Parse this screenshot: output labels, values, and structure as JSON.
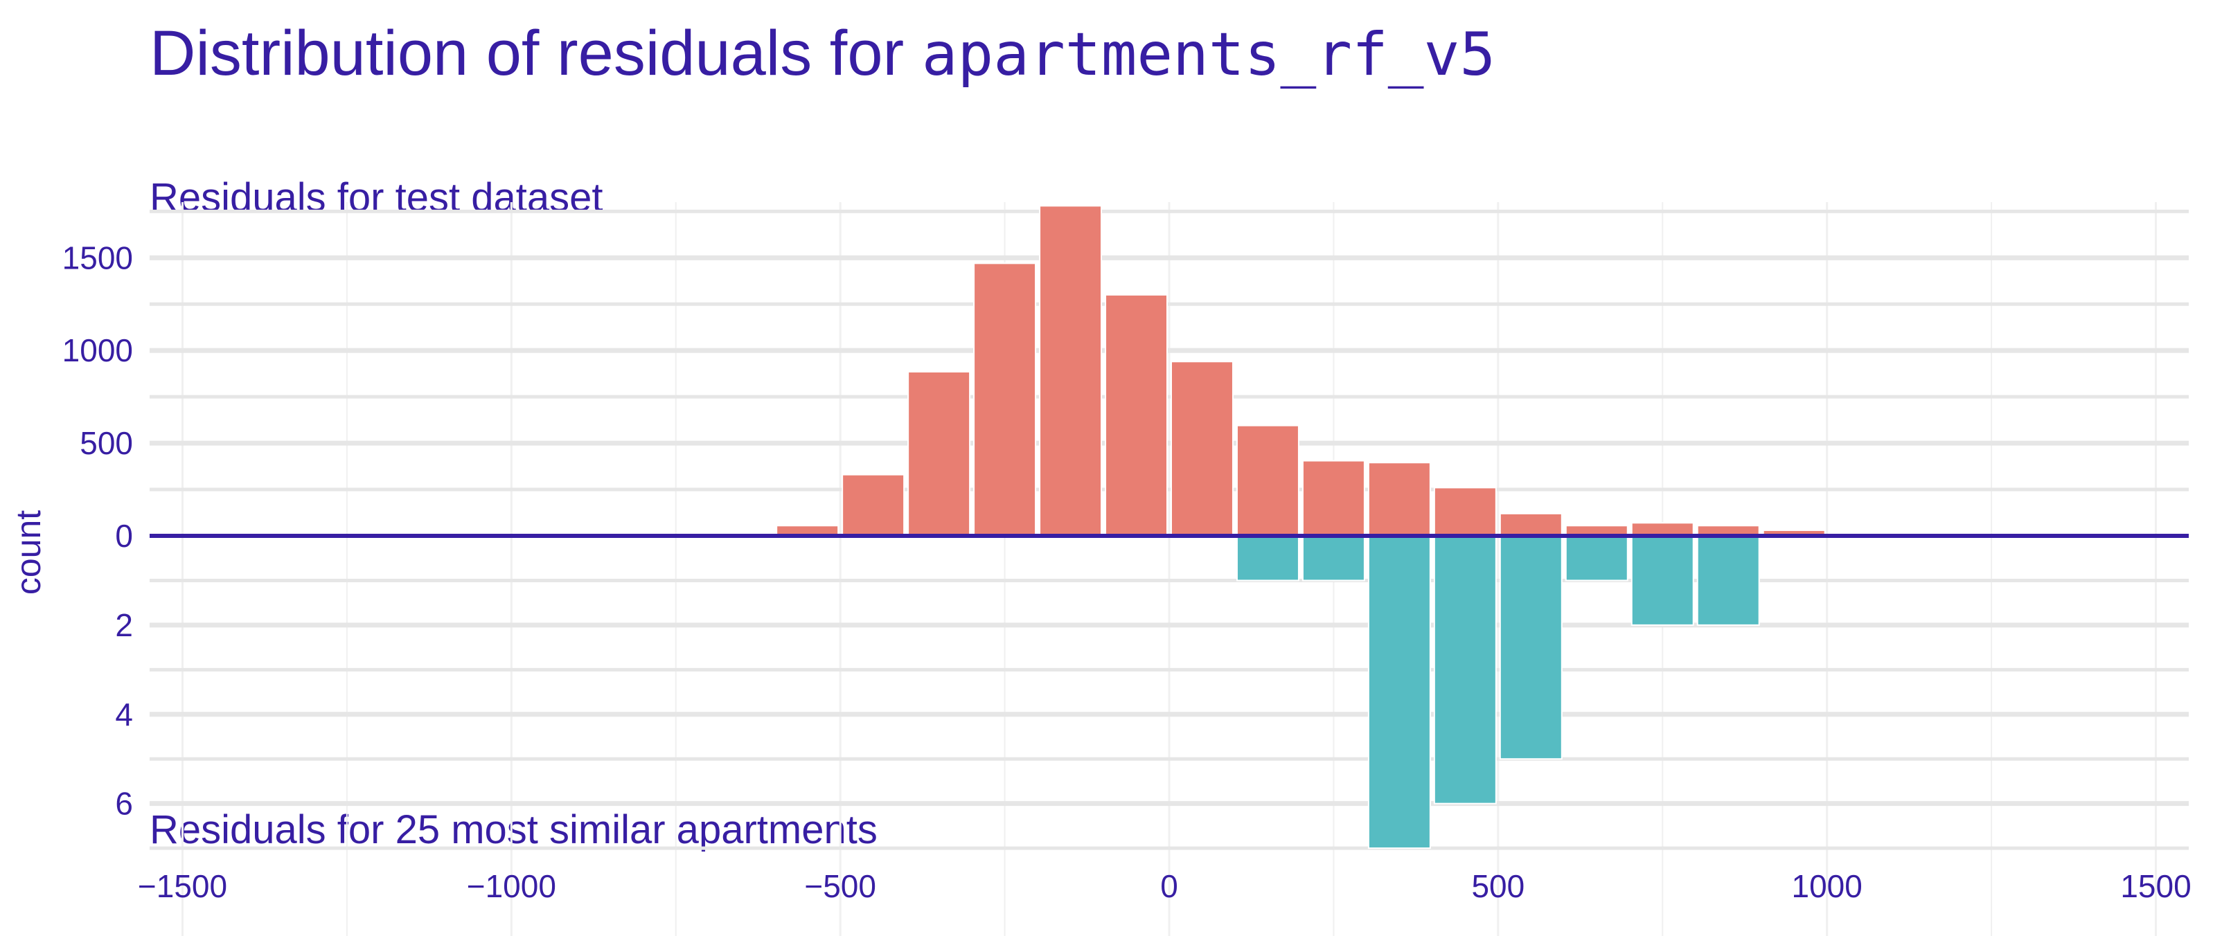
{
  "chart_data": {
    "type": "bar",
    "title_prefix": "Distribution of residuals for ",
    "title_model": "apartments_rf_v5",
    "ylabel": "count",
    "xlim": [
      -1550,
      1550
    ],
    "x_ticks": [
      -1500,
      -1000,
      -500,
      0,
      500,
      1000,
      1500
    ],
    "x_tick_labels": [
      "−1500",
      "−1000",
      "−500",
      "0",
      "500",
      "1000",
      "1500"
    ],
    "colors": {
      "title": "#371ea3",
      "top_bars": "#e87e72",
      "bottom_bars": "#56bcc2",
      "baseline": "#371ea3",
      "grid": "#e6e6e6",
      "grid_minor": "#f0f0f0"
    },
    "panels": [
      {
        "name": "top",
        "label": "Residuals for test dataset",
        "ylim": [
          0,
          1800
        ],
        "y_ticks": [
          0,
          500,
          1000,
          1500
        ],
        "y_tick_labels": [
          "0",
          "500",
          "1000",
          "1500"
        ],
        "bin_width": 100,
        "bins": [
          {
            "x": -550,
            "count": 55
          },
          {
            "x": -450,
            "count": 330
          },
          {
            "x": -350,
            "count": 885
          },
          {
            "x": -250,
            "count": 1470
          },
          {
            "x": -150,
            "count": 1780
          },
          {
            "x": -50,
            "count": 1300
          },
          {
            "x": 50,
            "count": 940
          },
          {
            "x": 150,
            "count": 595
          },
          {
            "x": 250,
            "count": 405
          },
          {
            "x": 350,
            "count": 395
          },
          {
            "x": 450,
            "count": 260
          },
          {
            "x": 550,
            "count": 120
          },
          {
            "x": 650,
            "count": 55
          },
          {
            "x": 750,
            "count": 70
          },
          {
            "x": 850,
            "count": 55
          },
          {
            "x": 950,
            "count": 30
          }
        ]
      },
      {
        "name": "bottom",
        "label": "Residuals for 25 most similar apartments",
        "ylim": [
          0,
          7.2
        ],
        "y_ticks": [
          2,
          4,
          6
        ],
        "y_tick_labels": [
          "2",
          "4",
          "6"
        ],
        "bin_width": 100,
        "bins": [
          {
            "x": 150,
            "count": 1
          },
          {
            "x": 250,
            "count": 1
          },
          {
            "x": 350,
            "count": 7
          },
          {
            "x": 450,
            "count": 6
          },
          {
            "x": 550,
            "count": 5
          },
          {
            "x": 650,
            "count": 1
          },
          {
            "x": 750,
            "count": 2
          },
          {
            "x": 850,
            "count": 2
          }
        ]
      }
    ]
  }
}
